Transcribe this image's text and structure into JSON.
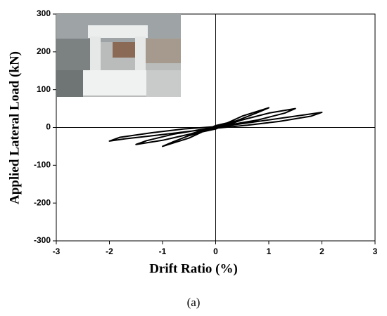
{
  "chart_data": {
    "type": "line",
    "x_label": "Drift Ratio (%)",
    "y_label": "Applied Lateral Load (kN)",
    "caption": "(a)",
    "xlim": [
      -3,
      3
    ],
    "ylim": [
      -300,
      300
    ],
    "xticks": [
      -3,
      -2,
      -1,
      0,
      1,
      2,
      3
    ],
    "yticks": [
      300,
      200,
      100,
      0,
      -100,
      -200,
      -300
    ],
    "series": [
      {
        "color": "#000000",
        "x": [
          0,
          0.25,
          0.5,
          0.3,
          0,
          -0.25,
          -0.5,
          -0.3,
          0,
          0.5,
          1.0,
          0.8,
          0.4,
          0,
          -0.5,
          -1.0,
          -0.8,
          -0.4,
          0,
          0.5,
          1.0,
          1.5,
          1.3,
          0.8,
          0.3,
          0,
          -0.5,
          -1.0,
          -1.5,
          -1.3,
          -0.8,
          -0.3,
          0,
          0.6,
          1.2,
          1.7,
          2.0,
          1.8,
          1.2,
          0.6,
          0,
          -0.6,
          -1.2,
          -1.7,
          -2.0,
          -1.8,
          -1.2,
          -0.6,
          0
        ],
        "values": [
          0,
          10,
          22,
          12,
          2,
          -10,
          -22,
          -12,
          -2,
          30,
          52,
          40,
          18,
          5,
          -28,
          -50,
          -38,
          -16,
          -4,
          20,
          38,
          50,
          38,
          20,
          8,
          2,
          -18,
          -34,
          -45,
          -35,
          -18,
          -6,
          0,
          12,
          24,
          34,
          40,
          30,
          16,
          6,
          -2,
          -12,
          -22,
          -30,
          -36,
          -26,
          -14,
          -4,
          2
        ]
      }
    ]
  }
}
